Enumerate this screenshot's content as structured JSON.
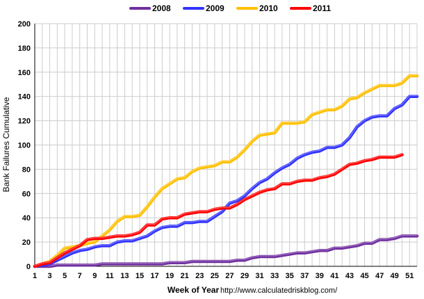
{
  "chart_data": {
    "type": "line",
    "title": "",
    "xlabel": "Week of Year",
    "ylabel": "Bank Failures Cumulative",
    "source": "http://www.calculatedriskblog.com/",
    "xlim": [
      1,
      52
    ],
    "ylim": [
      0,
      200
    ],
    "x_ticks": [
      1,
      3,
      5,
      7,
      9,
      11,
      13,
      15,
      17,
      19,
      21,
      23,
      25,
      27,
      29,
      31,
      33,
      35,
      37,
      39,
      41,
      43,
      45,
      47,
      49,
      51
    ],
    "y_ticks": [
      0,
      20,
      40,
      60,
      80,
      100,
      120,
      140,
      160,
      180,
      200
    ],
    "grid": true,
    "legend_position": "top-center",
    "series": [
      {
        "name": "2008",
        "color": "#7030a0",
        "x": [
          1,
          2,
          3,
          4,
          5,
          6,
          7,
          8,
          9,
          10,
          11,
          12,
          13,
          14,
          15,
          16,
          17,
          18,
          19,
          20,
          21,
          22,
          23,
          24,
          25,
          26,
          27,
          28,
          29,
          30,
          31,
          32,
          33,
          34,
          35,
          36,
          37,
          38,
          39,
          40,
          41,
          42,
          43,
          44,
          45,
          46,
          47,
          48,
          49,
          50,
          51,
          52
        ],
        "values": [
          0,
          0,
          0,
          1,
          1,
          1,
          1,
          1,
          1,
          2,
          2,
          2,
          2,
          2,
          2,
          2,
          2,
          2,
          3,
          3,
          3,
          4,
          4,
          4,
          4,
          4,
          4,
          5,
          5,
          7,
          8,
          8,
          8,
          9,
          10,
          11,
          11,
          12,
          13,
          13,
          15,
          15,
          16,
          17,
          19,
          19,
          22,
          22,
          23,
          25,
          25,
          25
        ]
      },
      {
        "name": "2009",
        "color": "#3333ff",
        "x": [
          1,
          2,
          3,
          4,
          5,
          6,
          7,
          8,
          9,
          10,
          11,
          12,
          13,
          14,
          15,
          16,
          17,
          18,
          19,
          20,
          21,
          22,
          23,
          24,
          25,
          26,
          27,
          28,
          29,
          30,
          31,
          32,
          33,
          34,
          35,
          36,
          37,
          38,
          39,
          40,
          41,
          42,
          43,
          44,
          45,
          46,
          47,
          48,
          49,
          50,
          51,
          52
        ],
        "values": [
          0,
          1,
          2,
          5,
          8,
          11,
          13,
          14,
          16,
          17,
          17,
          20,
          21,
          21,
          23,
          25,
          29,
          32,
          33,
          33,
          36,
          36,
          37,
          37,
          41,
          45,
          52,
          54,
          58,
          64,
          69,
          72,
          77,
          81,
          84,
          89,
          92,
          94,
          95,
          98,
          98,
          100,
          106,
          115,
          120,
          123,
          124,
          124,
          130,
          133,
          140,
          140
        ]
      },
      {
        "name": "2010",
        "color": "#ffc000",
        "x": [
          1,
          2,
          3,
          4,
          5,
          6,
          7,
          8,
          9,
          10,
          11,
          12,
          13,
          14,
          15,
          16,
          17,
          18,
          19,
          20,
          21,
          22,
          23,
          24,
          25,
          26,
          27,
          28,
          29,
          30,
          31,
          32,
          33,
          34,
          35,
          36,
          37,
          38,
          39,
          40,
          41,
          42,
          43,
          44,
          45,
          46,
          47,
          48,
          49,
          50,
          51,
          52
        ],
        "values": [
          0,
          2,
          4,
          9,
          15,
          16,
          17,
          19,
          20,
          25,
          30,
          37,
          41,
          41,
          42,
          49,
          57,
          64,
          68,
          72,
          73,
          78,
          81,
          82,
          83,
          86,
          86,
          90,
          96,
          103,
          108,
          109,
          110,
          118,
          118,
          118,
          119,
          125,
          127,
          129,
          129,
          132,
          138,
          139,
          143,
          146,
          149,
          149,
          149,
          151,
          157,
          157
        ]
      },
      {
        "name": "2011",
        "color": "#ff0000",
        "x": [
          1,
          2,
          3,
          4,
          5,
          6,
          7,
          8,
          9,
          10,
          11,
          12,
          13,
          14,
          15,
          16,
          17,
          18,
          19,
          20,
          21,
          22,
          23,
          24,
          25,
          26,
          27,
          28,
          29,
          30,
          31,
          32,
          33,
          34,
          35,
          36,
          37,
          38,
          39,
          40,
          41,
          42,
          43,
          44,
          45,
          46,
          47,
          48,
          49,
          50
        ],
        "values": [
          0,
          2,
          3,
          7,
          11,
          14,
          17,
          22,
          23,
          23,
          24,
          25,
          25,
          26,
          28,
          34,
          34,
          39,
          40,
          40,
          43,
          44,
          45,
          45,
          47,
          48,
          48,
          51,
          55,
          58,
          61,
          63,
          64,
          68,
          68,
          70,
          71,
          71,
          73,
          74,
          76,
          80,
          84,
          85,
          87,
          88,
          90,
          90,
          90,
          92
        ]
      }
    ]
  }
}
